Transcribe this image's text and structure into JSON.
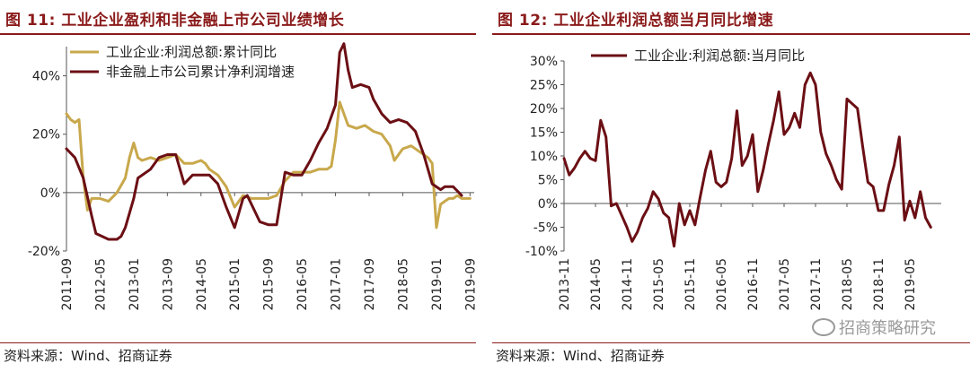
{
  "charts": [
    {
      "title": "图 11:  工业企业盈利和非金融上市公司业绩增长",
      "source": "资料来源：Wind、招商证券"
    },
    {
      "title": "图 12:  工业企业利润总额当月同比增速",
      "source": "资料来源：Wind、招商证券"
    }
  ],
  "watermark": "招商策略研究",
  "chart_data": [
    {
      "type": "line",
      "title": "图 11:  工业企业盈利和非金融上市公司业绩增长",
      "ylim": [
        -20,
        50
      ],
      "yticks": [
        -20,
        0,
        20,
        40
      ],
      "ytick_labels": [
        "-20%",
        "0%",
        "20%",
        "40%"
      ],
      "xlim": [
        0,
        97
      ],
      "xticks": [
        0,
        8,
        16,
        24,
        32,
        40,
        48,
        56,
        64,
        72,
        80,
        88,
        96
      ],
      "xtick_labels": [
        "2011-09",
        "2012-05",
        "2013-01",
        "2013-09",
        "2014-05",
        "2015-01",
        "2015-09",
        "2016-05",
        "2017-01",
        "2017-09",
        "2018-05",
        "2019-01",
        "2019-09"
      ],
      "grid": false,
      "legend_position": "top-left",
      "series": [
        {
          "name": "工业企业:利润总额:累计同比",
          "color": "#c8a84b",
          "points": [
            [
              0,
              27
            ],
            [
              1,
              25
            ],
            [
              2,
              24
            ],
            [
              3,
              25
            ],
            [
              4,
              5
            ],
            [
              5,
              -6
            ],
            [
              6,
              -2
            ],
            [
              7,
              -2
            ],
            [
              8,
              -2
            ],
            [
              10,
              -3
            ],
            [
              12,
              0
            ],
            [
              14,
              5
            ],
            [
              15,
              12
            ],
            [
              16,
              17
            ],
            [
              17,
              12
            ],
            [
              18,
              11
            ],
            [
              20,
              12
            ],
            [
              22,
              11
            ],
            [
              24,
              12
            ],
            [
              26,
              13
            ],
            [
              28,
              10
            ],
            [
              30,
              10
            ],
            [
              32,
              11
            ],
            [
              33,
              10
            ],
            [
              34,
              8
            ],
            [
              36,
              6
            ],
            [
              38,
              2
            ],
            [
              40,
              -5
            ],
            [
              42,
              -1
            ],
            [
              44,
              -2
            ],
            [
              46,
              -2
            ],
            [
              48,
              -2
            ],
            [
              50,
              -1
            ],
            [
              52,
              4
            ],
            [
              54,
              7
            ],
            [
              56,
              7
            ],
            [
              58,
              7
            ],
            [
              60,
              8
            ],
            [
              62,
              8
            ],
            [
              63,
              9
            ],
            [
              64,
              18
            ],
            [
              65,
              31
            ],
            [
              66,
              27
            ],
            [
              67,
              23
            ],
            [
              69,
              22
            ],
            [
              71,
              23
            ],
            [
              73,
              21
            ],
            [
              75,
              20
            ],
            [
              77,
              16
            ],
            [
              78,
              11
            ],
            [
              80,
              15
            ],
            [
              82,
              16
            ],
            [
              84,
              14
            ],
            [
              86,
              12
            ],
            [
              87,
              10
            ],
            [
              88,
              -12
            ],
            [
              89,
              -4
            ],
            [
              90,
              -3
            ],
            [
              91,
              -2
            ],
            [
              92,
              -2
            ],
            [
              93,
              -1
            ],
            [
              94,
              -2
            ],
            [
              95,
              -2
            ],
            [
              96,
              -2
            ]
          ]
        },
        {
          "name": "非金融上市公司累计净利润增速",
          "color": "#6b0f14",
          "points": [
            [
              0,
              15
            ],
            [
              2,
              12
            ],
            [
              4,
              5
            ],
            [
              6,
              -8
            ],
            [
              7,
              -14
            ],
            [
              10,
              -16
            ],
            [
              12,
              -16
            ],
            [
              13,
              -15
            ],
            [
              14,
              -12
            ],
            [
              16,
              -2
            ],
            [
              17,
              5
            ],
            [
              20,
              8
            ],
            [
              22,
              12
            ],
            [
              24,
              13
            ],
            [
              26,
              13
            ],
            [
              28,
              3
            ],
            [
              30,
              6
            ],
            [
              32,
              6
            ],
            [
              34,
              6
            ],
            [
              36,
              3
            ],
            [
              38,
              -5
            ],
            [
              40,
              -12
            ],
            [
              42,
              -2
            ],
            [
              43,
              -1
            ],
            [
              46,
              -10
            ],
            [
              48,
              -11
            ],
            [
              50,
              -11
            ],
            [
              52,
              7
            ],
            [
              54,
              6
            ],
            [
              56,
              6
            ],
            [
              58,
              11
            ],
            [
              60,
              17
            ],
            [
              62,
              22
            ],
            [
              64,
              30
            ],
            [
              65,
              48
            ],
            [
              66,
              51
            ],
            [
              67,
              42
            ],
            [
              68,
              36
            ],
            [
              70,
              37
            ],
            [
              72,
              36
            ],
            [
              73,
              32
            ],
            [
              75,
              27
            ],
            [
              77,
              24
            ],
            [
              79,
              25
            ],
            [
              81,
              24
            ],
            [
              83,
              21
            ],
            [
              85,
              13
            ],
            [
              87,
              3
            ],
            [
              89,
              1
            ],
            [
              90,
              2
            ],
            [
              92,
              2
            ],
            [
              94,
              -1
            ]
          ]
        }
      ]
    },
    {
      "type": "line",
      "title": "图 12:  工业企业利润总额当月同比增速",
      "ylim": [
        -10,
        30
      ],
      "yticks": [
        -10,
        -5,
        0,
        5,
        10,
        15,
        20,
        25,
        30
      ],
      "ytick_labels": [
        "-10%",
        "-5%",
        "0%",
        "5%",
        "10%",
        "15%",
        "20%",
        "25%",
        "30%"
      ],
      "xlim": [
        0,
        72
      ],
      "xticks": [
        0,
        6,
        12,
        18,
        24,
        30,
        36,
        42,
        48,
        54,
        60,
        66
      ],
      "xtick_labels": [
        "2013-11",
        "2014-05",
        "2014-11",
        "2015-05",
        "2015-11",
        "2016-05",
        "2016-11",
        "2017-05",
        "2017-11",
        "2018-05",
        "2018-11",
        "2019-05"
      ],
      "grid": false,
      "legend_position": "top-center",
      "series": [
        {
          "name": "工业企业:利润总额:当月同比",
          "color": "#6b0f14",
          "points": [
            [
              0,
              9.5
            ],
            [
              1,
              6
            ],
            [
              2,
              7.5
            ],
            [
              3,
              9.5
            ],
            [
              4,
              11
            ],
            [
              5,
              9.5
            ],
            [
              6,
              9
            ],
            [
              7,
              17.5
            ],
            [
              8,
              14
            ],
            [
              9,
              -0.5
            ],
            [
              10,
              0
            ],
            [
              11,
              -2.5
            ],
            [
              12,
              -5
            ],
            [
              13,
              -8
            ],
            [
              14,
              -6
            ],
            [
              15,
              -3
            ],
            [
              16,
              -1
            ],
            [
              17,
              2.5
            ],
            [
              18,
              1
            ],
            [
              19,
              -2
            ],
            [
              20,
              -3
            ],
            [
              21,
              -9
            ],
            [
              22,
              0
            ],
            [
              23,
              -4.5
            ],
            [
              24,
              -1.5
            ],
            [
              25,
              -4.5
            ],
            [
              26,
              1.5
            ],
            [
              27,
              7
            ],
            [
              28,
              11
            ],
            [
              29,
              4.5
            ],
            [
              30,
              3.5
            ],
            [
              31,
              4.5
            ],
            [
              32,
              9.5
            ],
            [
              33,
              19.5
            ],
            [
              34,
              8
            ],
            [
              35,
              10
            ],
            [
              36,
              14.5
            ],
            [
              37,
              2.5
            ],
            [
              38,
              7
            ],
            [
              39,
              12.5
            ],
            [
              40,
              17.5
            ],
            [
              41,
              23.5
            ],
            [
              42,
              14.5
            ],
            [
              43,
              16
            ],
            [
              44,
              19
            ],
            [
              45,
              16
            ],
            [
              46,
              25
            ],
            [
              47,
              27.5
            ],
            [
              48,
              25
            ],
            [
              49,
              15
            ],
            [
              50,
              10.5
            ],
            [
              51,
              8
            ],
            [
              52,
              5
            ],
            [
              53,
              3
            ],
            [
              54,
              22
            ],
            [
              55,
              21
            ],
            [
              56,
              20
            ],
            [
              57,
              12
            ],
            [
              58,
              4.5
            ],
            [
              59,
              3.5
            ],
            [
              60,
              -1.5
            ],
            [
              61,
              -1.5
            ],
            [
              62,
              4
            ],
            [
              63,
              8
            ],
            [
              64,
              14
            ],
            [
              65,
              -3.5
            ],
            [
              66,
              0.5
            ],
            [
              67,
              -3
            ],
            [
              68,
              2.5
            ],
            [
              69,
              -3
            ],
            [
              70,
              -5
            ]
          ]
        }
      ]
    }
  ]
}
